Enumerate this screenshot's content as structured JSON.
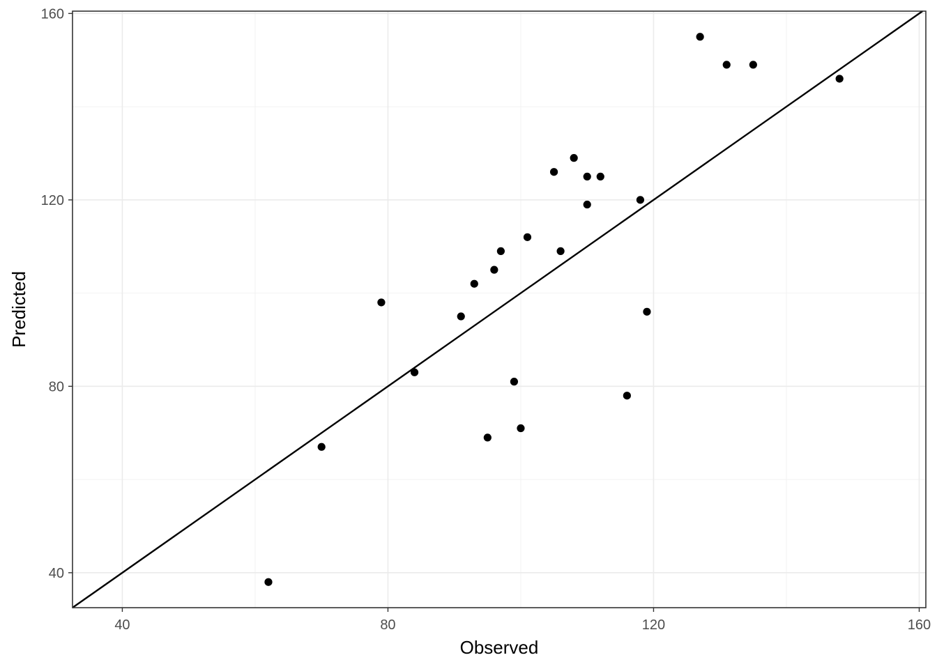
{
  "chart_data": {
    "type": "scatter",
    "title": "",
    "xlabel": "Observed",
    "ylabel": "Predicted",
    "xlim": [
      32.5,
      161
    ],
    "ylim": [
      32.5,
      160.5
    ],
    "x_ticks": [
      40,
      80,
      120,
      160
    ],
    "y_ticks": [
      40,
      80,
      120,
      160
    ],
    "x_tick_labels": [
      "40",
      "80",
      "120",
      "160"
    ],
    "y_tick_labels": [
      "40",
      "80",
      "120",
      "160"
    ],
    "grid": true,
    "reference_line": "y = x",
    "colors": {
      "points": "#000000",
      "line": "#000000",
      "grid": "#ebebeb"
    },
    "points": [
      {
        "x": 62,
        "y": 38
      },
      {
        "x": 70,
        "y": 67
      },
      {
        "x": 79,
        "y": 98
      },
      {
        "x": 84,
        "y": 83
      },
      {
        "x": 91,
        "y": 95
      },
      {
        "x": 93,
        "y": 102
      },
      {
        "x": 95,
        "y": 69
      },
      {
        "x": 96,
        "y": 105
      },
      {
        "x": 97,
        "y": 109
      },
      {
        "x": 99,
        "y": 81
      },
      {
        "x": 100,
        "y": 71
      },
      {
        "x": 101,
        "y": 112
      },
      {
        "x": 105,
        "y": 126
      },
      {
        "x": 106,
        "y": 109
      },
      {
        "x": 108,
        "y": 129
      },
      {
        "x": 110,
        "y": 125
      },
      {
        "x": 110,
        "y": 119
      },
      {
        "x": 112,
        "y": 125
      },
      {
        "x": 116,
        "y": 78
      },
      {
        "x": 118,
        "y": 120
      },
      {
        "x": 119,
        "y": 96
      },
      {
        "x": 127,
        "y": 155
      },
      {
        "x": 131,
        "y": 149
      },
      {
        "x": 135,
        "y": 149
      },
      {
        "x": 148,
        "y": 146
      }
    ]
  }
}
